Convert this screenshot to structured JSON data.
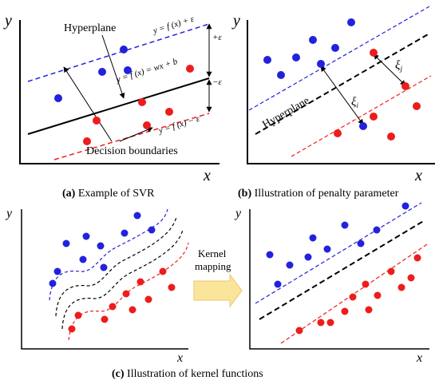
{
  "captions": {
    "a_letter": "(a)",
    "a_text": " Example of SVR",
    "b_letter": "(b)",
    "b_text": " Illustration of penalty parameter",
    "c_letter": "(c)",
    "c_text": " Illustration of kernel functions"
  },
  "axes": {
    "x": "x",
    "y": "y"
  },
  "panel_a": {
    "hyperplane_label": "Hyperplane",
    "upper_eq": "y = f (x) + ε",
    "middle_eq": "y = f (x) = wx + b",
    "lower_eq": "y = f (x) − ε",
    "plus_eps": "+ε",
    "minus_eps": "−ε",
    "boundaries_label": "Decision boundaries"
  },
  "panel_b": {
    "hyperplane_label": "Hyperplane",
    "xi_i": "ξ",
    "xi_i_sub": "i",
    "xi_j": "ξ",
    "xi_j_sub": "j"
  },
  "kernel_arrow": {
    "line1": "Kernel",
    "line2": "mapping"
  },
  "colors": {
    "blue": "#2222dd",
    "red": "#ee1c1c",
    "arrow_fill": "#fbe59a",
    "arrow_stroke": "#e8c86a"
  }
}
